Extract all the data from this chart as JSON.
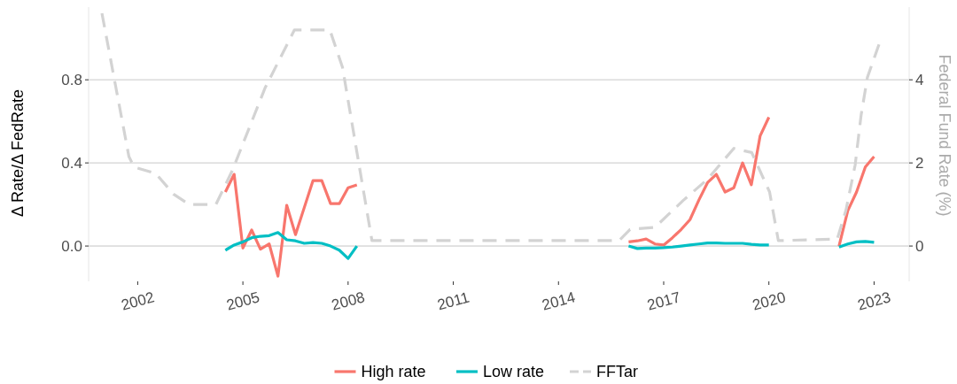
{
  "chart_data": {
    "type": "line",
    "ylabel": "Δ Rate/Δ FedRate",
    "y2label": "Federal Fund Rate (%)",
    "xlim": [
      2000.6,
      2024.0
    ],
    "xticks": [
      2002,
      2005,
      2008,
      2011,
      2014,
      2017,
      2020,
      2023
    ],
    "ylim": [
      -0.17,
      1.15
    ],
    "yticks": [
      {
        "value": 0,
        "label": "0.0"
      },
      {
        "value": 0.4,
        "label": "0.4"
      },
      {
        "value": 0.8,
        "label": "0.8"
      }
    ],
    "y2lim": [
      -0.85,
      5.75
    ],
    "y2ticks": [
      0,
      2,
      4
    ],
    "grid": "y",
    "legend": "bottom",
    "marker": "none",
    "series": [
      {
        "name": "High rate",
        "color": "#f8766d",
        "line_style": "solid",
        "x": [
          2004.5,
          2004.75,
          2005,
          2005.25,
          2005.5,
          2005.75,
          2006,
          2006.25,
          2006.5,
          2006.75,
          2007,
          2007.25,
          2007.5,
          2007.75,
          2008,
          2008.25,
          2012,
          2016,
          2016.25,
          2016.5,
          2016.75,
          2017,
          2017.25,
          2017.5,
          2017.75,
          2018,
          2018.25,
          2018.5,
          2018.75,
          2019,
          2019.25,
          2019.5,
          2019.75,
          2020,
          2021,
          2022,
          2022.25,
          2022.5,
          2022.75,
          2023
        ],
        "values": [
          0.26,
          0.345,
          -0.01,
          0.077,
          -0.015,
          0.01,
          -0.145,
          0.196,
          0.055,
          0.185,
          0.315,
          0.315,
          0.204,
          0.204,
          0.28,
          0.294,
          null,
          0.02,
          0.025,
          0.034,
          0.01,
          0.005,
          0.04,
          0.08,
          0.127,
          0.22,
          0.305,
          0.345,
          0.26,
          0.28,
          0.4,
          0.295,
          0.53,
          0.62,
          null,
          0.0,
          0.17,
          0.26,
          0.38,
          0.43
        ]
      },
      {
        "name": "Low rate",
        "color": "#00bfc4",
        "line_style": "solid",
        "x": [
          2004.5,
          2004.75,
          2005,
          2005.25,
          2005.5,
          2005.75,
          2006,
          2006.25,
          2006.5,
          2006.75,
          2007,
          2007.25,
          2007.5,
          2007.75,
          2008,
          2008.25,
          2012,
          2016,
          2016.25,
          2016.5,
          2016.75,
          2017,
          2017.25,
          2017.5,
          2017.75,
          2018,
          2018.25,
          2018.5,
          2018.75,
          2019,
          2019.25,
          2019.5,
          2019.75,
          2020,
          2021,
          2022,
          2022.25,
          2022.5,
          2022.75,
          2023
        ],
        "values": [
          -0.02,
          0.005,
          0.02,
          0.04,
          0.047,
          0.05,
          0.065,
          0.03,
          0.025,
          0.013,
          0.017,
          0.013,
          0.0,
          -0.02,
          -0.06,
          0.0,
          null,
          0.0,
          -0.012,
          -0.01,
          -0.01,
          -0.008,
          -0.005,
          0.0,
          0.005,
          0.01,
          0.015,
          0.015,
          0.013,
          0.013,
          0.013,
          0.008,
          0.005,
          0.005,
          null,
          -0.005,
          0.01,
          0.02,
          0.022,
          0.018
        ]
      },
      {
        "name": "FFTar",
        "color": "#d3d3d3",
        "line_style": "dashed",
        "axis": "y2",
        "x": [
          2000.98,
          2001.75,
          2001.9,
          2002.51,
          2003.02,
          2003.47,
          2004.23,
          2004.69,
          2005.63,
          2006.47,
          2007.48,
          2007.84,
          2008.68,
          2015.73,
          2016.04,
          2016.75,
          2017.56,
          2018.24,
          2019.0,
          2019.51,
          2020.02,
          2020.27,
          2021.95,
          2022.2,
          2022.46,
          2022.63,
          2022.81,
          2023.14
        ],
        "values": [
          5.6,
          2.15,
          1.9,
          1.75,
          1.25,
          1.0,
          1.0,
          1.8,
          3.8,
          5.2,
          5.2,
          4.3,
          0.13,
          0.13,
          0.4,
          0.45,
          1.1,
          1.6,
          2.35,
          2.25,
          1.3,
          0.13,
          0.17,
          0.87,
          1.95,
          3.15,
          4.06,
          4.85
        ]
      }
    ]
  }
}
